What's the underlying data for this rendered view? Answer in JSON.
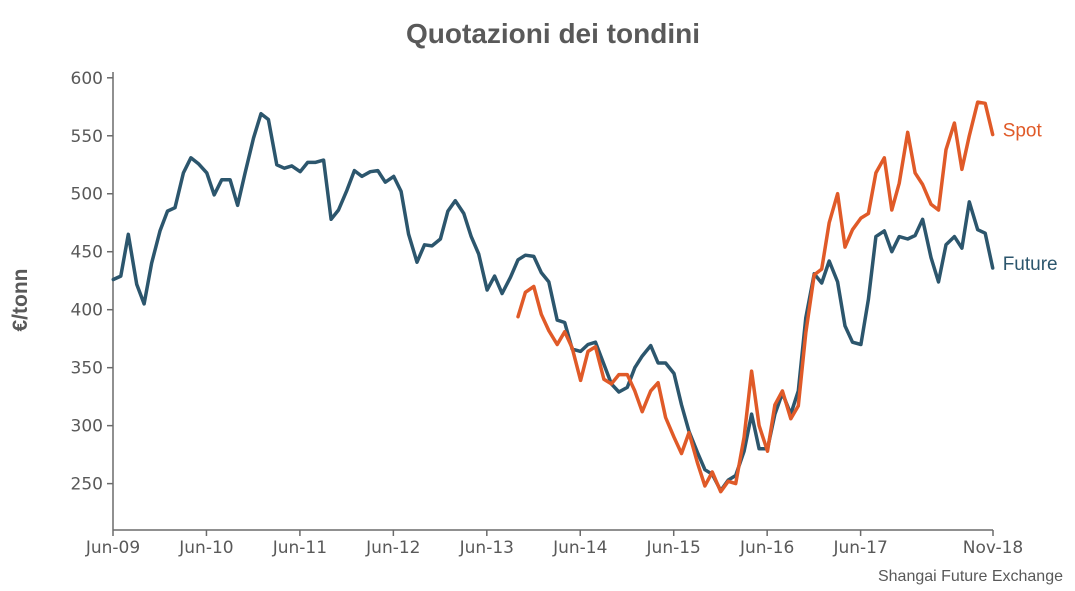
{
  "chart_data": {
    "type": "line",
    "title": "Quotazioni dei tondini",
    "ylabel": "€/tonn",
    "xlabel": "",
    "source": "Shangai Future Exchange",
    "ylim": [
      210,
      605
    ],
    "xlim": [
      2009.4167,
      2018.8333
    ],
    "yticks": [
      250,
      300,
      350,
      400,
      450,
      500,
      550,
      600
    ],
    "xticks": [
      {
        "label": "Jun-09",
        "x": 2009.4167
      },
      {
        "label": "Jun-10",
        "x": 2010.4167
      },
      {
        "label": "Jun-11",
        "x": 2011.4167
      },
      {
        "label": "Jun-12",
        "x": 2012.4167
      },
      {
        "label": "Jun-13",
        "x": 2013.4167
      },
      {
        "label": "Jun-14",
        "x": 2014.4167
      },
      {
        "label": "Jun-15",
        "x": 2015.4167
      },
      {
        "label": "Jun-16",
        "x": 2016.4167
      },
      {
        "label": "Jun-17",
        "x": 2017.4167
      },
      {
        "label": "Nov-18",
        "x": 2018.8333
      }
    ],
    "grid": false,
    "legend": "inline labels at right end of each series",
    "series": [
      {
        "name": "Future",
        "color": "#2c566d",
        "x": [
          2009.42,
          2009.5,
          2009.58,
          2009.67,
          2009.75,
          2009.83,
          2009.92,
          2010.0,
          2010.08,
          2010.17,
          2010.25,
          2010.33,
          2010.42,
          2010.5,
          2010.58,
          2010.67,
          2010.75,
          2010.83,
          2010.92,
          2011.0,
          2011.08,
          2011.17,
          2011.25,
          2011.33,
          2011.42,
          2011.5,
          2011.58,
          2011.67,
          2011.75,
          2011.83,
          2011.92,
          2012.0,
          2012.08,
          2012.17,
          2012.25,
          2012.33,
          2012.42,
          2012.5,
          2012.58,
          2012.67,
          2012.75,
          2012.83,
          2012.92,
          2013.0,
          2013.08,
          2013.17,
          2013.25,
          2013.33,
          2013.42,
          2013.5,
          2013.58,
          2013.67,
          2013.75,
          2013.83,
          2013.92,
          2014.0,
          2014.08,
          2014.17,
          2014.25,
          2014.33,
          2014.42,
          2014.5,
          2014.58,
          2014.67,
          2014.75,
          2014.83,
          2014.92,
          2015.0,
          2015.08,
          2015.17,
          2015.25,
          2015.33,
          2015.42,
          2015.5,
          2015.58,
          2015.67,
          2015.75,
          2015.83,
          2015.92,
          2016.0,
          2016.08,
          2016.17,
          2016.25,
          2016.33,
          2016.42,
          2016.5,
          2016.58,
          2016.67,
          2016.75,
          2016.83,
          2016.92,
          2017.0,
          2017.08,
          2017.17,
          2017.25,
          2017.33,
          2017.42,
          2017.5,
          2017.58,
          2017.67,
          2017.75,
          2017.83,
          2017.92,
          2018.0,
          2018.08,
          2018.17,
          2018.25,
          2018.33,
          2018.42,
          2018.5,
          2018.58,
          2018.67,
          2018.75,
          2018.83
        ],
        "values": [
          426,
          429,
          465,
          422,
          405,
          440,
          468,
          485,
          488,
          518,
          531,
          526,
          518,
          499,
          512,
          512,
          490,
          518,
          548,
          569,
          564,
          525,
          522,
          524,
          519,
          527,
          527,
          529,
          478,
          486,
          503,
          520,
          515,
          519,
          520,
          510,
          515,
          502,
          465,
          441,
          456,
          455,
          461,
          485,
          494,
          483,
          463,
          448,
          417,
          429,
          414,
          428,
          443,
          447,
          446,
          432,
          424,
          391,
          389,
          366,
          364,
          370,
          372,
          353,
          336,
          329,
          333,
          350,
          360,
          369,
          354,
          354,
          345,
          318,
          295,
          277,
          262,
          258,
          244,
          253,
          257,
          278,
          310,
          280,
          280,
          310,
          328,
          310,
          330,
          393,
          431,
          423,
          442,
          424,
          386,
          372,
          370,
          409,
          463,
          468,
          450,
          463,
          461,
          464,
          478,
          445,
          424,
          456,
          463,
          453,
          493,
          469,
          466,
          436
        ]
      },
      {
        "name": "Spot",
        "color": "#e05a28",
        "x": [
          2013.75,
          2013.83,
          2013.92,
          2014.0,
          2014.08,
          2014.17,
          2014.25,
          2014.33,
          2014.42,
          2014.5,
          2014.58,
          2014.67,
          2014.75,
          2014.83,
          2014.92,
          2015.0,
          2015.08,
          2015.17,
          2015.25,
          2015.33,
          2015.42,
          2015.5,
          2015.58,
          2015.67,
          2015.75,
          2015.83,
          2015.92,
          2016.0,
          2016.08,
          2016.17,
          2016.25,
          2016.33,
          2016.42,
          2016.5,
          2016.58,
          2016.67,
          2016.75,
          2016.83,
          2016.92,
          2017.0,
          2017.08,
          2017.17,
          2017.25,
          2017.33,
          2017.42,
          2017.5,
          2017.58,
          2017.67,
          2017.75,
          2017.83,
          2017.92,
          2018.0,
          2018.08,
          2018.17,
          2018.25,
          2018.33,
          2018.42,
          2018.5,
          2018.58,
          2018.67,
          2018.75,
          2018.83
        ],
        "values": [
          394,
          415,
          420,
          396,
          382,
          370,
          381,
          367,
          339,
          364,
          368,
          340,
          336,
          344,
          344,
          330,
          312,
          330,
          337,
          307,
          290,
          276,
          294,
          268,
          248,
          260,
          243,
          252,
          250,
          290,
          347,
          300,
          278,
          318,
          330,
          306,
          317,
          380,
          430,
          435,
          475,
          500,
          454,
          469,
          479,
          483,
          518,
          531,
          486,
          509,
          553,
          518,
          508,
          491,
          486,
          538,
          561,
          521,
          550,
          579,
          578,
          551
        ]
      }
    ]
  }
}
